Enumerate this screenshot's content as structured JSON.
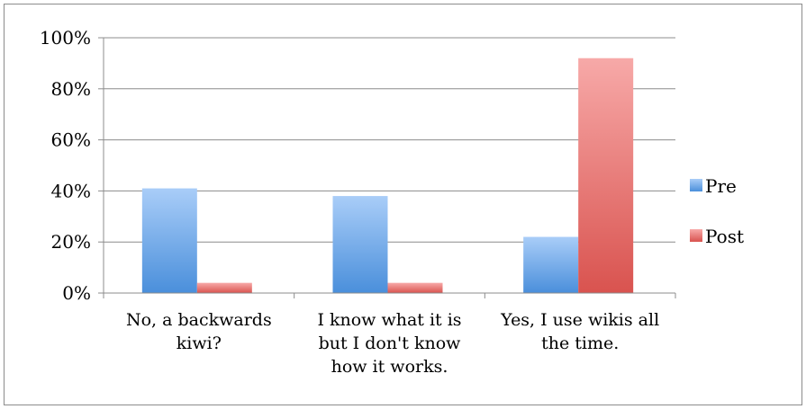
{
  "chart_data": {
    "type": "bar",
    "title": "",
    "xlabel": "",
    "ylabel": "",
    "categories": [
      [
        "No, a backwards",
        "kiwi?"
      ],
      [
        "I know what it is",
        "but I don't know",
        "how it works."
      ],
      [
        "Yes, I use wikis all",
        "the time."
      ]
    ],
    "series": [
      {
        "name": "Pre",
        "values": [
          0.41,
          0.38,
          0.22
        ],
        "color": "#4a8fdb"
      },
      {
        "name": "Post",
        "values": [
          0.04,
          0.04,
          0.92
        ],
        "color": "#d9534f"
      }
    ],
    "ylim": [
      0,
      1
    ],
    "yticks": [
      {
        "value": 0,
        "label": "0%"
      },
      {
        "value": 0.2,
        "label": "20%"
      },
      {
        "value": 0.4,
        "label": "40%"
      },
      {
        "value": 0.6,
        "label": "60%"
      },
      {
        "value": 0.8,
        "label": "80%"
      },
      {
        "value": 1,
        "label": "100%"
      }
    ],
    "grid": true,
    "legend_position": "right"
  }
}
